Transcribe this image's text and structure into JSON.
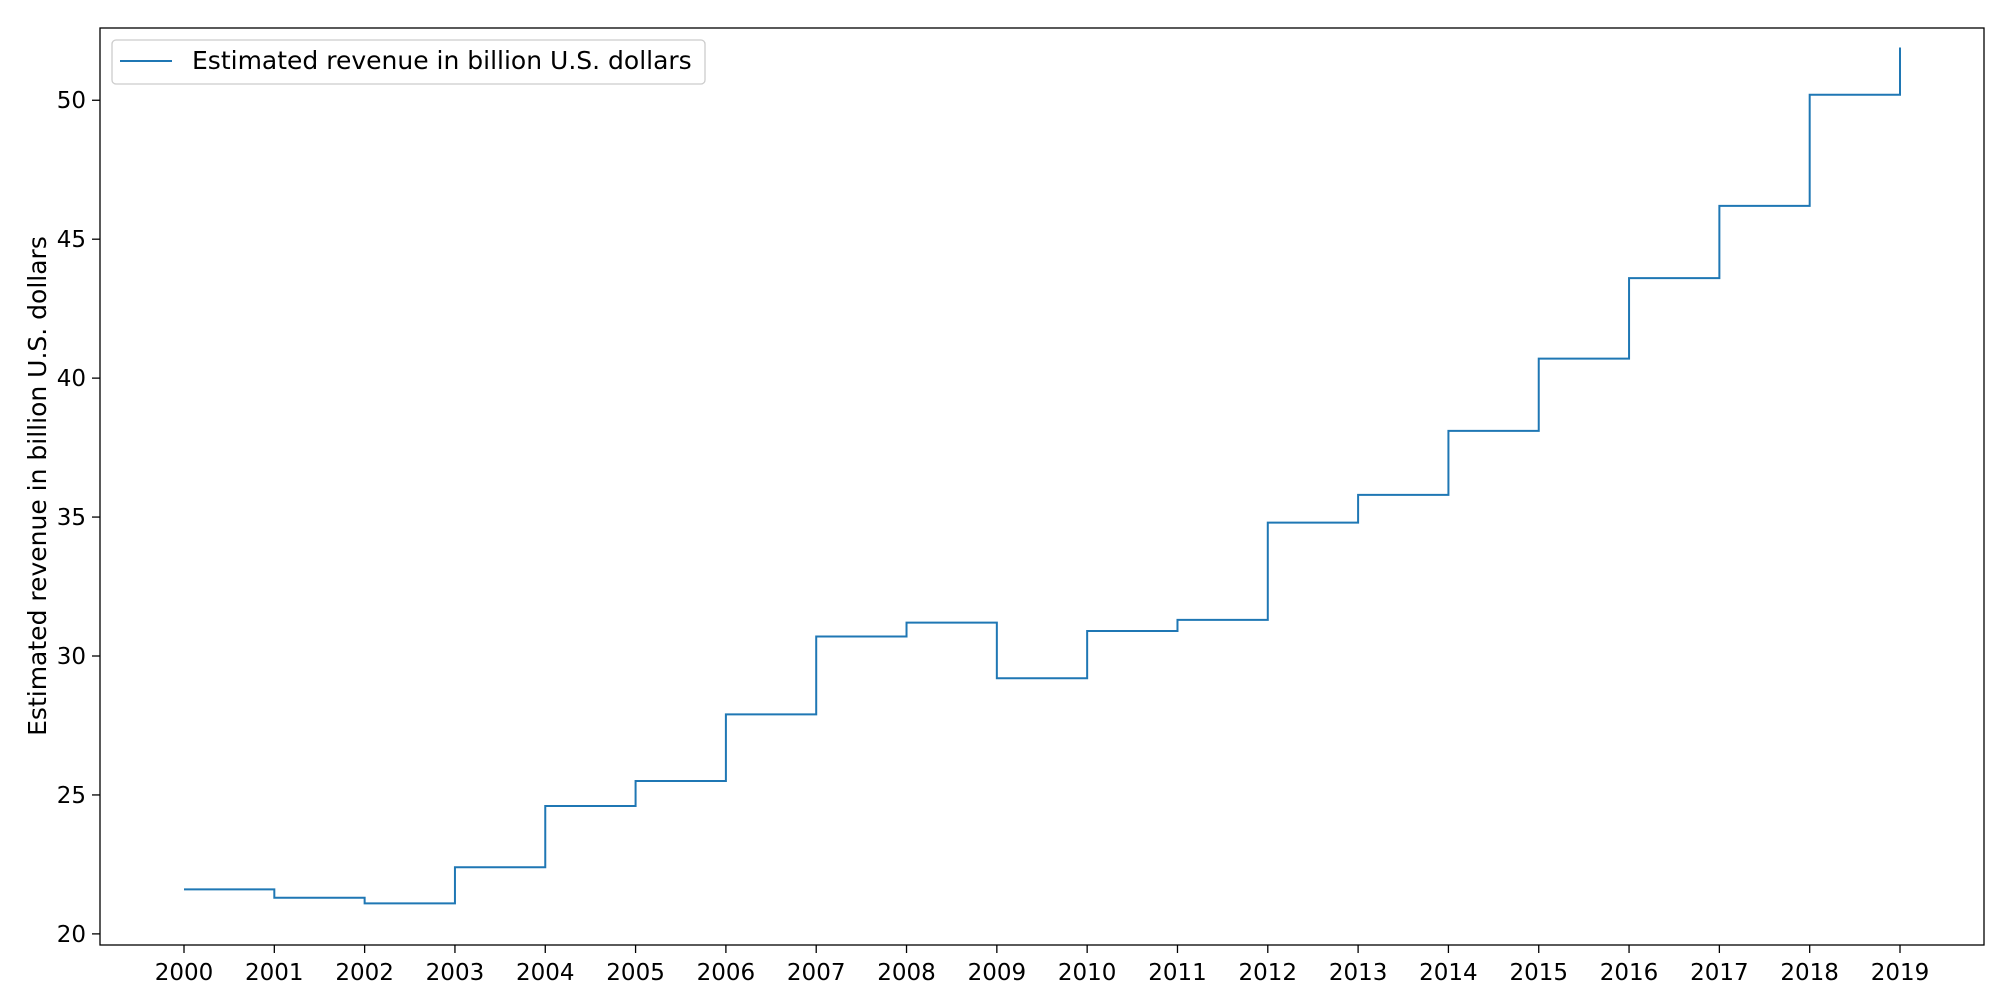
{
  "chart_data": {
    "type": "line",
    "drawstyle": "steps-post",
    "title": "",
    "xlabel": "",
    "ylabel": "Estimated revenue in billion U.S. dollars",
    "categories": [
      "2000",
      "2001",
      "2002",
      "2003",
      "2004",
      "2005",
      "2006",
      "2007",
      "2008",
      "2009",
      "2010",
      "2011",
      "2012",
      "2013",
      "2014",
      "2015",
      "2016",
      "2017",
      "2018",
      "2019"
    ],
    "series": [
      {
        "name": "Estimated revenue in billion U.S. dollars",
        "values": [
          21.6,
          21.3,
          21.1,
          22.4,
          24.6,
          25.5,
          27.9,
          30.7,
          31.2,
          29.2,
          30.9,
          31.3,
          34.8,
          35.8,
          38.1,
          40.7,
          43.6,
          46.2,
          50.2,
          51.9
        ],
        "color": "#1f77b4"
      }
    ],
    "ylim": [
      19.6,
      52.6
    ],
    "yticks": [
      "20",
      "25",
      "30",
      "35",
      "40",
      "45",
      "50"
    ],
    "grid": false,
    "legend": "top-left"
  }
}
